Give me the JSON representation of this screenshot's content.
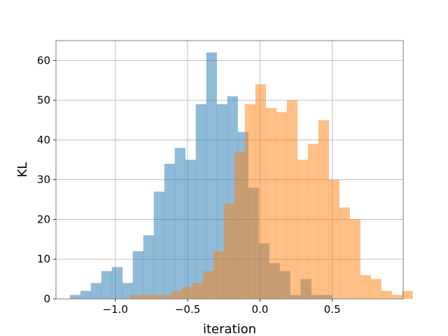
{
  "chart_data": {
    "type": "histogram",
    "title": "",
    "xlabel": "iteration",
    "ylabel": "KL",
    "xlim": [
      -1.41,
      0.99
    ],
    "ylim": [
      0,
      65
    ],
    "grid": true,
    "legend": "none",
    "bin_width": 0.0725,
    "x_ticks": [
      {
        "value": -1.0,
        "label": "−1.0"
      },
      {
        "value": -0.5,
        "label": "−0.5"
      },
      {
        "value": 0.0,
        "label": "0.0"
      },
      {
        "value": 0.5,
        "label": "0.5"
      }
    ],
    "y_ticks": [
      {
        "value": 0,
        "label": "0"
      },
      {
        "value": 10,
        "label": "10"
      },
      {
        "value": 20,
        "label": "20"
      },
      {
        "value": 30,
        "label": "30"
      },
      {
        "value": 40,
        "label": "40"
      },
      {
        "value": 50,
        "label": "50"
      },
      {
        "value": 60,
        "label": "60"
      }
    ],
    "series": [
      {
        "color": "#1f77b4",
        "opacity": 0.5,
        "bin_start": -1.314,
        "counts": [
          1,
          2,
          4,
          7,
          8,
          4,
          12,
          16,
          27,
          34,
          38,
          35,
          49,
          62,
          49,
          51,
          42,
          28,
          14,
          9,
          7,
          1,
          5,
          1,
          1
        ]
      },
      {
        "color": "#ff7f0e",
        "opacity": 0.5,
        "bin_start": -0.902,
        "counts": [
          1,
          1,
          1,
          1,
          2,
          3,
          4,
          7,
          12,
          24,
          37,
          49,
          54,
          48,
          47,
          50,
          35,
          39,
          45,
          30,
          23,
          20,
          6,
          5,
          2,
          1,
          2
        ]
      }
    ]
  }
}
